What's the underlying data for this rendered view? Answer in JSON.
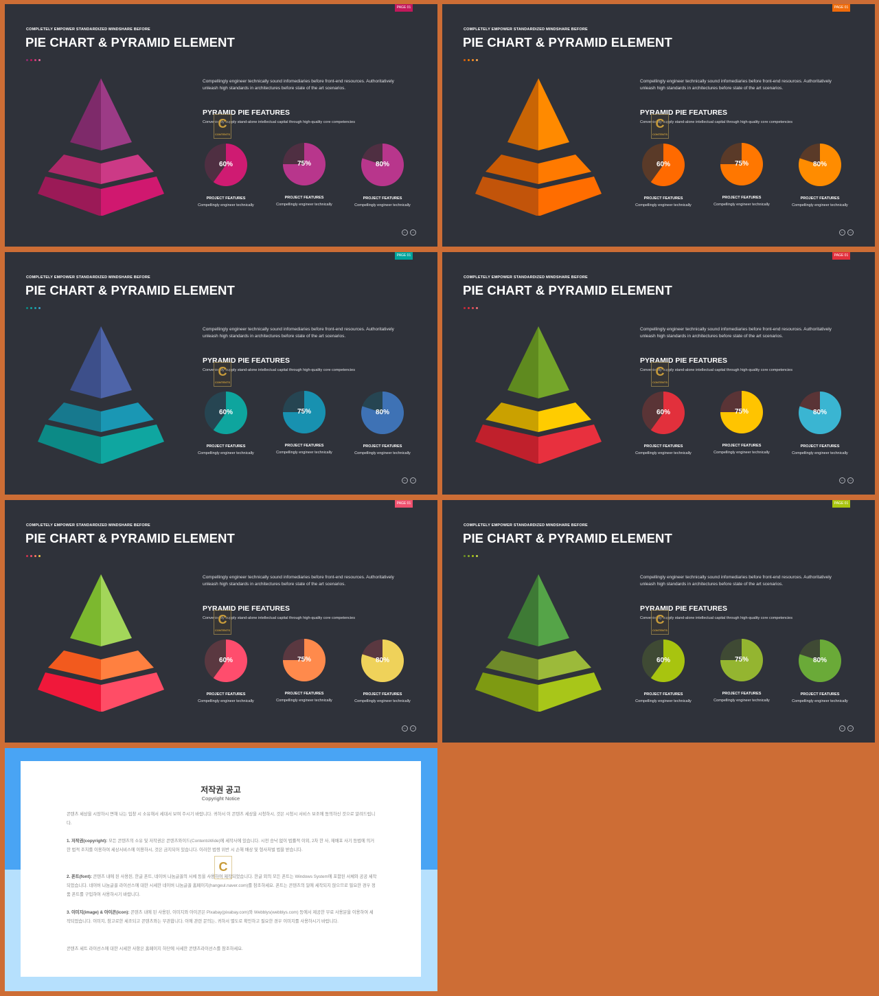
{
  "slides": [
    {
      "page_badge": "PAGE 01",
      "kicker": "COMPLETELY  EMPOWER  STANDARDIZED  MINDSHARE  BEFORE",
      "title": "PIE CHART & PYRAMID ELEMENT",
      "intro": "Compellingly engineer technically sound infomediaries before front-end resources. Authoritatively unleash high standards in architectures before state of the art scenarios.",
      "subheading": "PYRAMID PIE FEATURES",
      "subdesc": "Conveniently supply stand-alone intellectual capital through high-quality core competencies",
      "watermark": "C",
      "watermark_text": "CONTENTS",
      "pies": [
        {
          "value": 60,
          "label": "60%"
        },
        {
          "value": 75,
          "label": "75%"
        },
        {
          "value": 80,
          "label": "80%"
        }
      ],
      "caption_title": "PROJECT FEATURES",
      "caption_text": "Compellingly engineer technically",
      "nav_prev": "←",
      "nav_next": "→",
      "colors": {
        "badge": "#c2185b",
        "dots": [
          "#8e2d6e",
          "#c2185b",
          "#d23f7f",
          "#e86aa0"
        ],
        "pyr_top": [
          "#7e2a6a",
          "#9c3b86"
        ],
        "pyr_mid": [
          "#ad2868",
          "#cc3a86"
        ],
        "pyr_bot": [
          "#9b1a57",
          "#d0186f"
        ],
        "pies": [
          "#cf1b72",
          "#b8368c",
          "#b8368c"
        ],
        "pie_bg": "#4f2f42"
      }
    },
    {
      "page_badge": "PAGE 01",
      "kicker": "COMPLETELY  EMPOWER  STANDARDIZED  MINDSHARE  BEFORE",
      "title": "PIE CHART & PYRAMID ELEMENT",
      "intro": "Compellingly engineer technically sound infomediaries before front-end resources. Authoritatively unleash high standards in architectures before state of the art scenarios.",
      "subheading": "PYRAMID PIE FEATURES",
      "subdesc": "Conveniently supply stand-alone intellectual capital through high-quality core competencies",
      "watermark": "C",
      "watermark_text": "CONTENTS",
      "pies": [
        {
          "value": 60,
          "label": "60%"
        },
        {
          "value": 75,
          "label": "75%"
        },
        {
          "value": 80,
          "label": "80%"
        }
      ],
      "caption_title": "PROJECT FEATURES",
      "caption_text": "Compellingly engineer technically",
      "nav_prev": "←",
      "nav_next": "→",
      "colors": {
        "badge": "#f06b0a",
        "dots": [
          "#d95f0c",
          "#f57c00",
          "#ff8f1f",
          "#ffa94d"
        ],
        "pyr_top": [
          "#c96505",
          "#ff8a00"
        ],
        "pyr_mid": [
          "#c95a05",
          "#ff7a00"
        ],
        "pyr_bot": [
          "#c2540a",
          "#ff6d00"
        ],
        "pies": [
          "#ff6a00",
          "#ff7700",
          "#ff8c00"
        ],
        "pie_bg": "#5a3a28"
      }
    },
    {
      "page_badge": "PAGE 01",
      "kicker": "COMPLETELY  EMPOWER  STANDARDIZED  MINDSHARE  BEFORE",
      "title": "PIE CHART & PYRAMID ELEMENT",
      "intro": "Compellingly engineer technically sound infomediaries before front-end resources. Authoritatively unleash high standards in architectures before state of the art scenarios.",
      "subheading": "PYRAMID PIE FEATURES",
      "subdesc": "Conveniently supply stand-alone intellectual capital through high-quality core competencies",
      "watermark": "C",
      "watermark_text": "CONTENTS",
      "pies": [
        {
          "value": 60,
          "label": "60%"
        },
        {
          "value": 75,
          "label": "75%"
        },
        {
          "value": 80,
          "label": "80%"
        }
      ],
      "caption_title": "PROJECT FEATURES",
      "caption_text": "Compellingly engineer technically",
      "nav_prev": "←",
      "nav_next": "→",
      "colors": {
        "badge": "#00a39b",
        "dots": [
          "#0d8c85",
          "#14a3a0",
          "#1aa2b2",
          "#3aa0c8"
        ],
        "pyr_top": [
          "#3d4f8a",
          "#4e64a8"
        ],
        "pyr_mid": [
          "#17798e",
          "#1a97b4"
        ],
        "pyr_bot": [
          "#0c8a86",
          "#0fa6a0"
        ],
        "pies": [
          "#0ea59e",
          "#1891b0",
          "#3e72b5"
        ],
        "pie_bg": "#264552"
      }
    },
    {
      "page_badge": "PAGE 01",
      "kicker": "COMPLETELY  EMPOWER  STANDARDIZED  MINDSHARE  BEFORE",
      "title": "PIE CHART & PYRAMID ELEMENT",
      "intro": "Compellingly engineer technically sound infomediaries before front-end resources. Authoritatively unleash high standards in architectures before state of the art scenarios.",
      "subheading": "PYRAMID PIE FEATURES",
      "subdesc": "Conveniently supply stand-alone intellectual capital through high-quality core competencies",
      "watermark": "C",
      "watermark_text": "CONTENTS",
      "pies": [
        {
          "value": 60,
          "label": "60%"
        },
        {
          "value": 75,
          "label": "75%"
        },
        {
          "value": 80,
          "label": "80%"
        }
      ],
      "caption_title": "PROJECT FEATURES",
      "caption_text": "Compellingly engineer technically",
      "nav_prev": "←",
      "nav_next": "→",
      "colors": {
        "badge": "#e2303c",
        "dots": [
          "#c8283a",
          "#e2303c",
          "#e84a55",
          "#ef6f78"
        ],
        "pyr_top": [
          "#5f8a1f",
          "#74a52a"
        ],
        "pyr_mid": [
          "#caa100",
          "#ffcc00"
        ],
        "pyr_bot": [
          "#c0202c",
          "#e8303e"
        ],
        "pies": [
          "#e2303c",
          "#ffc400",
          "#3ab5d2"
        ],
        "pie_bg": "#5a3436"
      }
    },
    {
      "page_badge": "PAGE 01",
      "kicker": "COMPLETELY  EMPOWER  STANDARDIZED  MINDSHARE  BEFORE",
      "title": "PIE CHART & PYRAMID ELEMENT",
      "intro": "Compellingly engineer technically sound infomediaries before front-end resources. Authoritatively unleash high standards in architectures before state of the art scenarios.",
      "subheading": "PYRAMID PIE FEATURES",
      "subdesc": "Conveniently supply stand-alone intellectual capital through high-quality core competencies",
      "watermark": "C",
      "watermark_text": "CONTENTS",
      "pies": [
        {
          "value": 60,
          "label": "60%"
        },
        {
          "value": 75,
          "label": "75%"
        },
        {
          "value": 80,
          "label": "80%"
        }
      ],
      "caption_title": "PROJECT FEATURES",
      "caption_text": "Compellingly engineer technically",
      "nav_prev": "←",
      "nav_next": "→",
      "colors": {
        "badge": "#f0506e",
        "dots": [
          "#d2334f",
          "#f0506e",
          "#ff7b5c",
          "#f5c84a"
        ],
        "pyr_top": [
          "#7cb82f",
          "#a3d65a"
        ],
        "pyr_mid": [
          "#f25a1e",
          "#ff8040"
        ],
        "pyr_bot": [
          "#f0183a",
          "#ff4d66"
        ],
        "pies": [
          "#ff4d6d",
          "#ff8a4c",
          "#efd25a"
        ],
        "pie_bg": "#5a3840"
      }
    },
    {
      "page_badge": "PAGE 01",
      "kicker": "COMPLETELY  EMPOWER  STANDARDIZED  MINDSHARE  BEFORE",
      "title": "PIE CHART & PYRAMID ELEMENT",
      "intro": "Compellingly engineer technically sound infomediaries before front-end resources. Authoritatively unleash high standards in architectures before state of the art scenarios.",
      "subheading": "PYRAMID PIE FEATURES",
      "subdesc": "Conveniently supply stand-alone intellectual capital through high-quality core competencies",
      "watermark": "C",
      "watermark_text": "CONTENTS",
      "pies": [
        {
          "value": 60,
          "label": "60%"
        },
        {
          "value": 75,
          "label": "75%"
        },
        {
          "value": 80,
          "label": "80%"
        }
      ],
      "caption_title": "PROJECT FEATURES",
      "caption_text": "Compellingly engineer technically",
      "nav_prev": "←",
      "nav_next": "→",
      "colors": {
        "badge": "#a8c40f",
        "dots": [
          "#6b8e23",
          "#8bad2a",
          "#a8c40f",
          "#c3d64a"
        ],
        "pyr_top": [
          "#3e7a35",
          "#55a448"
        ],
        "pyr_mid": [
          "#6f8a2a",
          "#9cba3a"
        ],
        "pyr_bot": [
          "#7e9a12",
          "#a8c619"
        ],
        "pies": [
          "#a8c40f",
          "#94b530",
          "#6aaa38"
        ],
        "pie_bg": "#3f4a34"
      }
    }
  ],
  "copyright": {
    "title": "저작권 공고",
    "subtitle": "Copyright Notice",
    "p0": "콘텐츠 세상을 시장하시 면해 나는 입창 시 소유해서 세대서 보여 주시기 바랍니다. 귀하서 이 콘텐츠 세상을 시청하시, 것은 시청시 서비스 보조에 동의하신 것으로 알려드립니다.",
    "p1_label": "1. 저작권(copyright):",
    "p1": " 모든 콘텐츠의 소유 및 저작권은 콘텐츠와이드(ContentsWide)에 세작사에 있습니다. 시전 승낙 없이 법률적 이외, 2차 한 사, 재배포 사기 등법에 의거한 법적 조치를 이용하여 세상서비스에 이용하시, 것은 금지되어 있습니다. 이러한 법령 위반 시 손해 배상 및 형사처벌 법을 받습니다.",
    "p2_label": "2. 폰트(font):",
    "p2": " 콘텐츠 내에 된 사용된, 한글 폰트, 네이버 나눔글꼴의 서체 등을 사용하여 제작되었습니다. 한글 외의 모든 폰트는 Windows System에 포함된 서체와 공공 세작되었습니다. 네이버 나눔글꼴 라이선스에 대한 시세한 네이버 나눔글꼴 홈페이지(hangeul.naver.com)를 참조하세요. 폰트는 콘텐츠의 일에 세작되지 않으므로 필요한 경우 정품 폰트를 구입하여 사용하시기 바랍니다.",
    "p3_label": "3. 이미지(image) & 아이콘(icon):",
    "p3": " 콘텐츠 내에 된 사용된, 이미지와 아이콘은 Pixabay(pixabay.com)와 Webblys(webblys.com) 등에서 제공한 무료 사용분을 이용하여 세작되었습니다. 이미지, 참고로한 세조되고 콘텐츠와는 무관합니다. 이에 관련 문의는, 귀하서 별도로 확인하고 필요한 경우 이미지를 사용하시기 바랍니다.",
    "p4": "콘텐츠 세트 라이선스에 대한 시세한 사항은 홈페이지 하단에 사세한 콘텐츠라이선스를 참조하세요.",
    "watermark": "C",
    "colors": {
      "band_top": "#49a4f4",
      "band_bottom": "#b6e0fd"
    }
  }
}
